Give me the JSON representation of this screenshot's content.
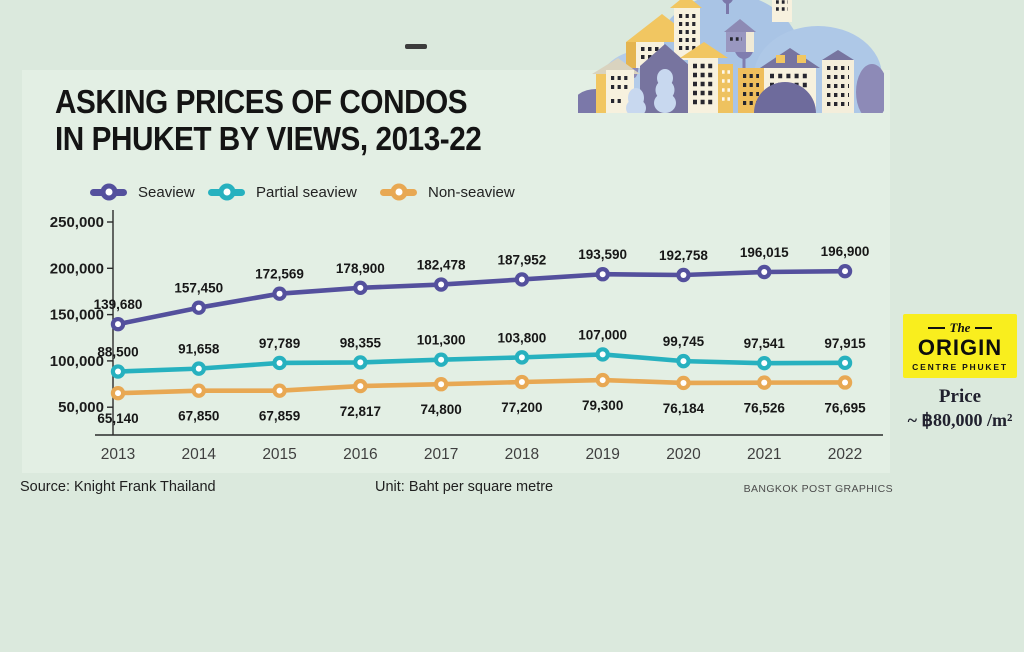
{
  "header": {
    "title_line1": "ASKING PRICES OF CONDOS",
    "title_line2": "IN PHUKET BY VIEWS, 2013-22"
  },
  "chart_data": {
    "type": "line",
    "title": "ASKING PRICES OF CONDOS IN PHUKET BY VIEWS, 2013-22",
    "unit": "Baht per square metre",
    "categories": [
      "2013",
      "2014",
      "2015",
      "2016",
      "2017",
      "2018",
      "2019",
      "2020",
      "2021",
      "2022"
    ],
    "series": [
      {
        "name": "Seaview",
        "color": "#54509d",
        "label_position": "above",
        "values": [
          139680,
          157450,
          172569,
          178900,
          182478,
          187952,
          193590,
          192758,
          196015,
          196900
        ]
      },
      {
        "name": "Partial seaview",
        "color": "#27b1bf",
        "label_position": "above",
        "values": [
          88500,
          91658,
          97789,
          98355,
          101300,
          103800,
          107000,
          99745,
          97541,
          97915
        ]
      },
      {
        "name": "Non-seaview",
        "color": "#e8a853",
        "label_position": "below",
        "values": [
          65140,
          67850,
          67859,
          72817,
          74800,
          77200,
          79300,
          76184,
          76526,
          76695
        ]
      }
    ],
    "y_ticks": [
      250000,
      200000,
      150000,
      100000,
      50000
    ],
    "ylim": [
      20000,
      265000
    ],
    "grid": false,
    "legend_position": "top"
  },
  "footer": {
    "source": "Source: Knight Frank Thailand",
    "unit": "Unit: Baht per square metre",
    "credit": "BANGKOK POST GRAPHICS"
  },
  "ad": {
    "brand_top": "The",
    "brand_name": "ORIGIN",
    "brand_sub": "CENTRE PHUKET",
    "bg_color": "#f9ee1e",
    "price_label": "Price",
    "price_value": "~ ฿80,000 /m²"
  }
}
